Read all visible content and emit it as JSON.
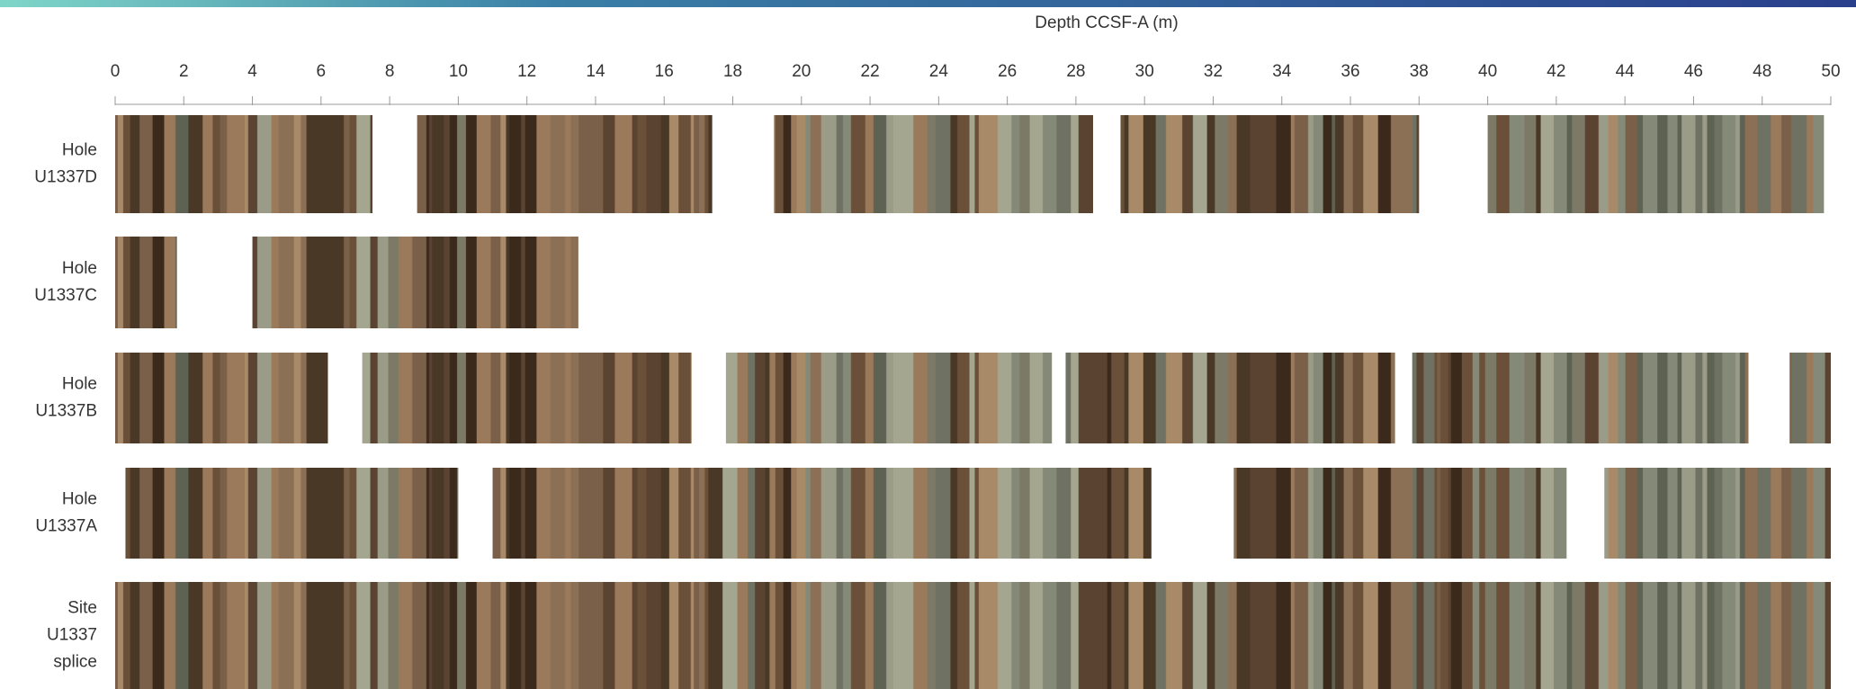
{
  "chart_data": {
    "type": "range",
    "x_label": "Depth CCSF-A (m)",
    "xlim": [
      0,
      50
    ],
    "xticks": [
      0,
      2,
      4,
      6,
      8,
      10,
      12,
      14,
      16,
      18,
      20,
      22,
      24,
      26,
      28,
      30,
      32,
      34,
      36,
      38,
      40,
      42,
      44,
      46,
      48,
      50
    ],
    "rows": [
      {
        "label": [
          "Hole",
          "U1337D"
        ],
        "segments": [
          [
            0,
            7.5
          ],
          [
            8.8,
            17.4
          ],
          [
            19.2,
            28.5
          ],
          [
            29.3,
            38
          ],
          [
            40,
            49.8
          ]
        ]
      },
      {
        "label": [
          "Hole",
          "U1337C"
        ],
        "segments": [
          [
            0,
            1.8
          ],
          [
            4,
            13.5
          ]
        ]
      },
      {
        "label": [
          "Hole",
          "U1337B"
        ],
        "segments": [
          [
            0,
            6.2
          ],
          [
            7.2,
            16.8
          ],
          [
            17.8,
            27.3
          ],
          [
            27.7,
            37.3
          ],
          [
            37.8,
            47.6
          ],
          [
            48.8,
            50
          ]
        ]
      },
      {
        "label": [
          "Hole",
          "U1337A"
        ],
        "segments": [
          [
            0.3,
            10
          ],
          [
            11,
            30.2
          ],
          [
            32.6,
            42.3
          ],
          [
            43.4,
            50
          ]
        ]
      },
      {
        "label": [
          "Site",
          "U1337",
          "splice"
        ],
        "segments": [
          [
            0,
            50
          ]
        ]
      }
    ]
  }
}
